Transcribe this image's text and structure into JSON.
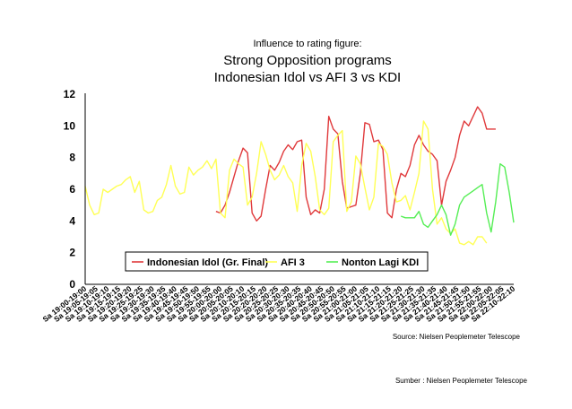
{
  "chart_data": {
    "type": "line",
    "pre_title": "Influence to rating figure:",
    "title": "Strong Opposition programs",
    "subtitle": "Indonesian Idol vs AFI 3 vs KDI",
    "ylim": [
      0,
      12
    ],
    "yticks": [
      "0",
      "2",
      "4",
      "6",
      "8",
      "10",
      "12"
    ],
    "categories": [
      "Sa 19:00-19:00",
      "Sa 19:05-19:05",
      "Sa 19:10-19:10",
      "Sa 19:15-19:15",
      "Sa 19:20-19:20",
      "Sa 19:25-19:25",
      "Sa 19:30-19:30",
      "Sa 19:35-19:35",
      "Sa 19:40-19:40",
      "Sa 19:45-19:45",
      "Sa 19:50-19:50",
      "Sa 19:55-19:55",
      "Sa 20:00-20:00",
      "Sa 20:05-20:05",
      "Sa 20:10-20:10",
      "Sa 20:15-20:15",
      "Sa 20:20-20:20",
      "Sa 20:25-20:25",
      "Sa 20:30-20:30",
      "Sa 20:35-20:35",
      "Sa 20:40-20:40",
      "Sa 20:45-20:45",
      "Sa 20:50-20:50",
      "Sa 20:55-20:55",
      "Sa 21:00-21:00",
      "Sa 21:05-21:05",
      "Sa 21:10-21:10",
      "Sa 21:15-21:15",
      "Sa 21:20-21:20",
      "Sa 21:25-21:25",
      "Sa 21:30-21:30",
      "Sa 21:35-21:35",
      "Sa 21:40-21:40",
      "Sa 21:45-21:45",
      "Sa 21:50-21:50",
      "Sa 21:55-21:55",
      "Sa 22:00-22:00",
      "Sa 22:05-22:05",
      "Sa 22:10-22:10"
    ],
    "series": [
      {
        "name": "Indonesian Idol (Gr. Final)",
        "color": "#e0393b",
        "x": [
          11.6,
          12.0,
          12.4,
          12.8,
          13.2,
          13.6,
          14.0,
          14.4,
          14.8,
          15.2,
          15.6,
          16.0,
          16.4,
          16.8,
          17.2,
          17.6,
          18.0,
          18.4,
          18.8,
          19.2,
          19.6,
          20.0,
          20.4,
          20.8,
          21.2,
          21.6,
          22.0,
          22.4,
          22.8,
          23.2,
          23.6,
          24.0,
          24.4,
          24.8,
          25.2,
          25.6,
          26.0,
          26.4,
          26.8,
          27.2,
          27.6,
          28.0,
          28.4,
          28.8,
          29.2,
          29.6,
          30.0,
          30.4,
          30.8,
          31.2,
          31.6,
          32.0,
          32.4,
          32.8,
          33.2,
          33.6,
          34.0,
          34.4,
          34.8,
          35.2,
          35.6,
          36.0,
          36.4
        ],
        "values": [
          4.6,
          4.5,
          5.0,
          5.8,
          6.8,
          7.8,
          8.6,
          8.3,
          4.5,
          4.0,
          4.3,
          6.0,
          7.5,
          7.2,
          7.7,
          8.4,
          8.8,
          8.5,
          9.0,
          9.1,
          5.5,
          4.4,
          4.7,
          4.5,
          6.0,
          10.6,
          9.8,
          9.5,
          6.5,
          4.8,
          4.9,
          5.0,
          7.0,
          10.2,
          10.1,
          9.0,
          9.1,
          8.5,
          4.5,
          4.2,
          6.0,
          7.0,
          6.8,
          7.5,
          8.8,
          9.4,
          8.8,
          8.4,
          8.2,
          7.8,
          5.0,
          6.5,
          7.2,
          8.0,
          9.4,
          10.3,
          10.0,
          10.6,
          11.2,
          10.8,
          9.8,
          9.8,
          9.8
        ]
      },
      {
        "name": "AFI 3",
        "color": "#ffff55",
        "x": [
          0.0,
          0.4,
          0.8,
          1.2,
          1.6,
          2.0,
          2.4,
          2.8,
          3.2,
          3.6,
          4.0,
          4.4,
          4.8,
          5.2,
          5.6,
          6.0,
          6.4,
          6.8,
          7.2,
          7.6,
          8.0,
          8.4,
          8.8,
          9.2,
          9.6,
          10.0,
          10.4,
          10.8,
          11.2,
          11.6,
          12.0,
          12.4,
          12.8,
          13.2,
          13.6,
          14.0,
          14.4,
          14.8,
          15.2,
          15.6,
          16.0,
          16.4,
          16.8,
          17.2,
          17.6,
          18.0,
          18.4,
          18.8,
          19.2,
          19.6,
          20.0,
          20.4,
          20.8,
          21.2,
          21.6,
          22.0,
          22.4,
          22.8,
          23.2,
          23.6,
          24.0,
          24.4,
          24.8,
          25.2,
          25.6,
          26.0,
          26.4,
          26.8,
          27.2,
          27.6,
          28.0,
          28.4,
          28.8,
          29.2,
          29.6,
          30.0,
          30.4,
          30.8,
          31.2,
          31.6,
          32.0,
          32.4,
          32.8,
          33.2,
          33.6,
          34.0,
          34.4,
          34.8,
          35.2,
          35.6
        ],
        "values": [
          6.2,
          5.0,
          4.4,
          4.5,
          6.0,
          5.8,
          6.0,
          6.2,
          6.3,
          6.6,
          6.8,
          5.8,
          6.5,
          4.7,
          4.5,
          4.6,
          5.3,
          5.5,
          6.3,
          7.5,
          6.2,
          5.7,
          5.8,
          7.4,
          6.9,
          7.2,
          7.4,
          7.8,
          7.3,
          7.9,
          4.5,
          4.2,
          7.2,
          7.9,
          7.6,
          7.4,
          5.0,
          5.5,
          7.0,
          9.0,
          8.2,
          7.2,
          6.6,
          6.9,
          7.5,
          6.8,
          6.4,
          4.6,
          7.5,
          8.9,
          8.4,
          6.8,
          4.7,
          4.4,
          4.8,
          9.0,
          9.4,
          9.7,
          4.6,
          5.2,
          8.1,
          7.6,
          6.1,
          4.7,
          5.5,
          8.9,
          8.7,
          8.2,
          6.4,
          5.2,
          5.3,
          5.6,
          4.7,
          5.8,
          7.0,
          10.3,
          9.8,
          6.0,
          3.8,
          4.2,
          3.5,
          3.2,
          3.5,
          2.6,
          2.5,
          2.7,
          2.5,
          3.0,
          3.0,
          2.6
        ]
      },
      {
        "name": "Nonton Lagi KDI",
        "color": "#55ee55",
        "x": [
          28.0,
          28.4,
          28.8,
          29.2,
          29.6,
          30.0,
          30.4,
          30.8,
          31.2,
          31.6,
          32.0,
          32.4,
          32.8,
          33.2,
          33.6,
          34.0,
          34.4,
          34.8,
          35.2,
          35.6,
          36.0,
          36.4,
          36.8,
          37.2,
          37.6,
          38.0
        ],
        "values": [
          4.3,
          4.2,
          4.2,
          4.2,
          4.6,
          3.8,
          3.6,
          4.0,
          4.4,
          5.0,
          4.4,
          3.1,
          3.8,
          5.0,
          5.5,
          5.7,
          5.9,
          6.1,
          6.3,
          4.5,
          3.3,
          5.2,
          7.6,
          7.4,
          5.8,
          3.9
        ]
      }
    ],
    "source": "Source: Nielsen Peoplemeter Telescope",
    "sumber": "Sumber : Nielsen Peoplemeter Telescope"
  }
}
